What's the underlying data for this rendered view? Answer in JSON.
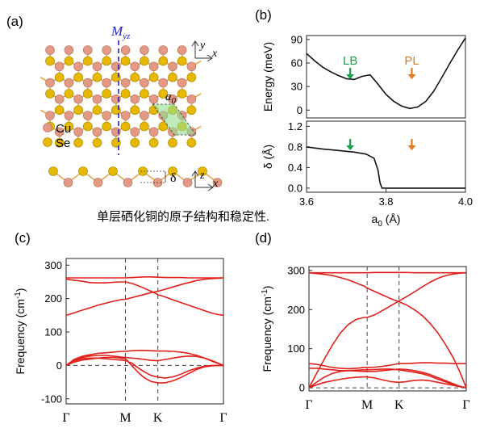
{
  "panel_labels": {
    "a": "(a)",
    "b": "(b)",
    "c": "(c)",
    "d": "(d)"
  },
  "panel_a": {
    "mirror_label": "M",
    "mirror_sub": "yz",
    "axis_top": {
      "y": "y",
      "x": "x"
    },
    "axis_side": {
      "z": "z",
      "x": "x"
    },
    "lattice_label": "a",
    "lattice_sub": "0",
    "delta_label": "δ",
    "legend": [
      {
        "name": "Cu",
        "color": "#e39a84"
      },
      {
        "name": "Se",
        "color": "#e6b800"
      }
    ]
  },
  "caption": "单层硒化铜的原子结构和稳定性.",
  "colors": {
    "curve_red": "#e0201b",
    "lb_green": "#17a34a",
    "pl_orange": "#e07a1f"
  },
  "chart_data": [
    {
      "id": "b-top",
      "type": "line",
      "ylabel": "Energy (meV)",
      "xlim": [
        3.6,
        4.0
      ],
      "ylim": [
        -10,
        95
      ],
      "yticks": [
        0,
        30,
        60,
        90
      ],
      "annotations": [
        {
          "text": "LB",
          "x": 3.71,
          "color": "#17a34a"
        },
        {
          "text": "PL",
          "x": 3.865,
          "color": "#e07a1f"
        }
      ],
      "x": [
        3.6,
        3.62,
        3.64,
        3.66,
        3.68,
        3.7,
        3.72,
        3.74,
        3.76,
        3.78,
        3.8,
        3.82,
        3.84,
        3.86,
        3.88,
        3.9,
        3.92,
        3.94,
        3.96,
        3.98,
        4.0
      ],
      "y": [
        72,
        63,
        55,
        49,
        44,
        40,
        39,
        43,
        45,
        33,
        20,
        11,
        5,
        2,
        4,
        11,
        24,
        41,
        59,
        76,
        92
      ]
    },
    {
      "id": "b-bottom",
      "type": "line",
      "ylabel": "δ (Å)",
      "xlabel": "a",
      "xlabel_sub": "0",
      "xlabel_unit": " (Å)",
      "xlim": [
        3.6,
        4.0
      ],
      "ylim": [
        -0.08,
        1.3
      ],
      "yticks": [
        0.0,
        0.4,
        0.8,
        1.2
      ],
      "yticklabels": [
        "0.0",
        "0.4",
        "0.8",
        "1.2"
      ],
      "xticks": [
        3.6,
        3.8,
        4.0
      ],
      "xticklabels": [
        "3.6",
        "3.8",
        "4.0"
      ],
      "annotations": [
        {
          "text": "",
          "x": 3.71,
          "color": "#17a34a"
        },
        {
          "text": "",
          "x": 3.865,
          "color": "#e07a1f"
        }
      ],
      "x": [
        3.6,
        3.64,
        3.68,
        3.72,
        3.75,
        3.77,
        3.78,
        3.785,
        3.79,
        3.8,
        3.86,
        3.92,
        4.0
      ],
      "y": [
        0.8,
        0.76,
        0.73,
        0.7,
        0.66,
        0.58,
        0.35,
        0.1,
        0.0,
        0.0,
        0.0,
        0.0,
        0.0
      ]
    },
    {
      "id": "c",
      "type": "line",
      "ylabel": "Frequency (cm",
      "ylabel_sup": "-1",
      "ylabel_end": ")",
      "ylim": [
        -115,
        320
      ],
      "yticks": [
        -100,
        0,
        100,
        200,
        300
      ],
      "yticklabels": [
        "-100",
        "0",
        "100",
        "200",
        "300"
      ],
      "kpoints": [
        "Γ",
        "M",
        "K",
        "Γ"
      ],
      "kpos": [
        0,
        0.377,
        0.583,
        1.0
      ],
      "x": [
        0,
        0.05,
        0.1,
        0.15,
        0.2,
        0.25,
        0.3,
        0.35,
        0.377,
        0.42,
        0.46,
        0.5,
        0.54,
        0.583,
        0.63,
        0.68,
        0.73,
        0.78,
        0.83,
        0.88,
        0.93,
        0.97,
        1.0
      ],
      "series": [
        {
          "values": [
            262,
            262,
            262,
            262,
            262,
            262,
            262,
            262,
            262,
            263,
            264,
            265,
            265,
            264,
            263,
            263,
            263,
            262,
            262,
            262,
            262,
            262,
            262
          ]
        },
        {
          "values": [
            258,
            255,
            252,
            248,
            247,
            247,
            249,
            250,
            250,
            245,
            238,
            230,
            222,
            212,
            205,
            196,
            188,
            180,
            172,
            164,
            156,
            152,
            150
          ]
        },
        {
          "values": [
            150,
            157,
            165,
            172,
            180,
            186,
            192,
            197,
            198,
            203,
            208,
            213,
            218,
            222,
            228,
            235,
            242,
            248,
            254,
            258,
            260,
            261,
            262
          ]
        },
        {
          "values": [
            0,
            18,
            27,
            32,
            36,
            38,
            40,
            42,
            42,
            44,
            45,
            45,
            44,
            43,
            43,
            42,
            40,
            36,
            30,
            22,
            12,
            5,
            0
          ]
        },
        {
          "values": [
            0,
            16,
            24,
            28,
            30,
            30,
            28,
            25,
            24,
            22,
            20,
            18,
            15,
            14,
            18,
            22,
            26,
            28,
            27,
            22,
            14,
            6,
            0
          ]
        },
        {
          "values": [
            0,
            14,
            20,
            22,
            22,
            20,
            18,
            16,
            15,
            6,
            -8,
            -20,
            -30,
            -35,
            -38,
            -34,
            -26,
            -16,
            -8,
            -2,
            0,
            0,
            0
          ]
        },
        {
          "values": [
            0,
            10,
            16,
            19,
            22,
            24,
            24,
            22,
            20,
            -2,
            -22,
            -38,
            -48,
            -52,
            -52,
            -46,
            -36,
            -24,
            -12,
            -4,
            -1,
            0,
            0
          ]
        }
      ]
    },
    {
      "id": "d",
      "type": "line",
      "ylabel": "Frequency (cm",
      "ylabel_sup": "-1",
      "ylabel_end": ")",
      "ylim": [
        -8,
        310
      ],
      "yticks": [
        0,
        100,
        200,
        300
      ],
      "yticklabels": [
        "0",
        "100",
        "200",
        "300"
      ],
      "kpoints": [
        "Γ",
        "M",
        "K",
        "Γ"
      ],
      "kpos": [
        0,
        0.37,
        0.573,
        1.0
      ],
      "x": [
        0,
        0.05,
        0.1,
        0.15,
        0.2,
        0.25,
        0.3,
        0.35,
        0.37,
        0.42,
        0.47,
        0.52,
        0.573,
        0.62,
        0.67,
        0.72,
        0.77,
        0.82,
        0.87,
        0.92,
        0.96,
        1.0
      ],
      "series": [
        {
          "values": [
            294,
            294,
            294,
            294,
            294,
            294,
            294,
            294,
            294,
            295,
            295,
            295,
            295,
            295,
            294,
            294,
            294,
            294,
            294,
            294,
            294,
            294
          ]
        },
        {
          "values": [
            294,
            292,
            290,
            287,
            282,
            276,
            268,
            260,
            255,
            246,
            237,
            228,
            220,
            212,
            200,
            185,
            165,
            140,
            110,
            75,
            40,
            0
          ]
        },
        {
          "values": [
            0,
            38,
            75,
            110,
            140,
            162,
            175,
            180,
            180,
            187,
            198,
            210,
            222,
            233,
            245,
            258,
            270,
            280,
            287,
            291,
            293,
            294
          ]
        },
        {
          "values": [
            62,
            60,
            56,
            52,
            50,
            49,
            50,
            52,
            52,
            53,
            55,
            58,
            62,
            62,
            63,
            64,
            64,
            63,
            63,
            62,
            62,
            62
          ]
        },
        {
          "values": [
            50,
            50,
            48,
            46,
            44,
            44,
            45,
            46,
            46,
            47,
            48,
            48,
            46,
            43,
            40,
            36,
            30,
            22,
            15,
            8,
            3,
            0
          ]
        },
        {
          "values": [
            0,
            15,
            28,
            37,
            42,
            44,
            43,
            42,
            42,
            42,
            44,
            46,
            48,
            47,
            44,
            40,
            34,
            26,
            18,
            10,
            4,
            0
          ]
        },
        {
          "values": [
            0,
            8,
            14,
            18,
            22,
            25,
            27,
            28,
            28,
            25,
            20,
            16,
            14,
            16,
            19,
            20,
            18,
            14,
            10,
            6,
            3,
            0
          ]
        }
      ]
    }
  ]
}
